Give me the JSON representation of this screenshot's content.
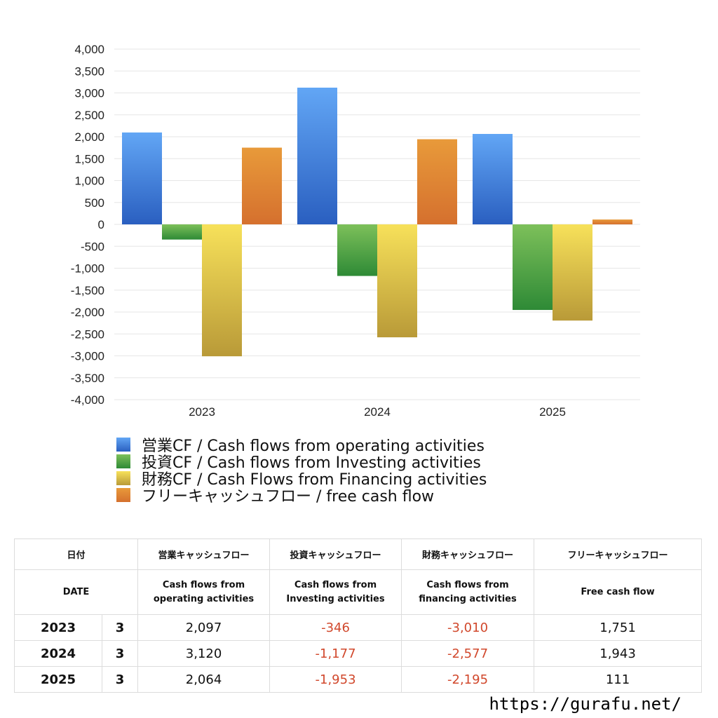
{
  "chart_data": {
    "type": "bar",
    "categories": [
      "2023",
      "2024",
      "2025"
    ],
    "series": [
      {
        "name": "営業CF / Cash flows from operating activities",
        "values": [
          2097,
          3120,
          2064
        ],
        "color_top": "#62a6f5",
        "color_bottom": "#2a5fc0"
      },
      {
        "name": "投資CF / Cash flows from Investing activities",
        "values": [
          -346,
          -1177,
          -1953
        ],
        "color_top": "#7dc05a",
        "color_bottom": "#2e8a36"
      },
      {
        "name": "財務CF / Cash Flows from Financing activities",
        "values": [
          -3010,
          -2577,
          -2195
        ],
        "color_top": "#f7e15a",
        "color_bottom": "#b99a38"
      },
      {
        "name": "フリーキャッシュフロー / free cash flow",
        "values": [
          1751,
          1943,
          111
        ],
        "color_top": "#e89a3a",
        "color_bottom": "#d5702e"
      }
    ],
    "ylim": [
      -4000,
      4000
    ],
    "yticks": [
      "4,000",
      "3,500",
      "3,000",
      "2,500",
      "2,000",
      "1,500",
      "1,000",
      "500",
      "0",
      "-500",
      "-1,000",
      "-1,500",
      "-2,000",
      "-2,500",
      "-3,000",
      "-3,500",
      "-4,000"
    ],
    "grid": true,
    "legend_position": "bottom-left"
  },
  "table": {
    "headers_jp": [
      "日付",
      "",
      "営業キャッシュフロー",
      "投資キャッシュフロー",
      "財務キャッシュフロー",
      "フリーキャッシュフロー"
    ],
    "headers_en": {
      "date": "DATE",
      "op_line1": "Cash flows from",
      "op_line2": "operating activities",
      "inv_line1": "Cash flows from",
      "inv_line2": "Investing activities",
      "fin_line1": "Cash flows from",
      "fin_line2": "financing activities",
      "free": "Free cash flow"
    },
    "rows": [
      {
        "year": "2023",
        "month": "3",
        "operating": "2,097",
        "investing": "-346",
        "financing": "-3,010",
        "free": "1,751"
      },
      {
        "year": "2024",
        "month": "3",
        "operating": "3,120",
        "investing": "-1,177",
        "financing": "-2,577",
        "free": "1,943"
      },
      {
        "year": "2025",
        "month": "3",
        "operating": "2,064",
        "investing": "-1,953",
        "financing": "-2,195",
        "free": "111"
      }
    ]
  },
  "site_url": "https://gurafu.net/"
}
